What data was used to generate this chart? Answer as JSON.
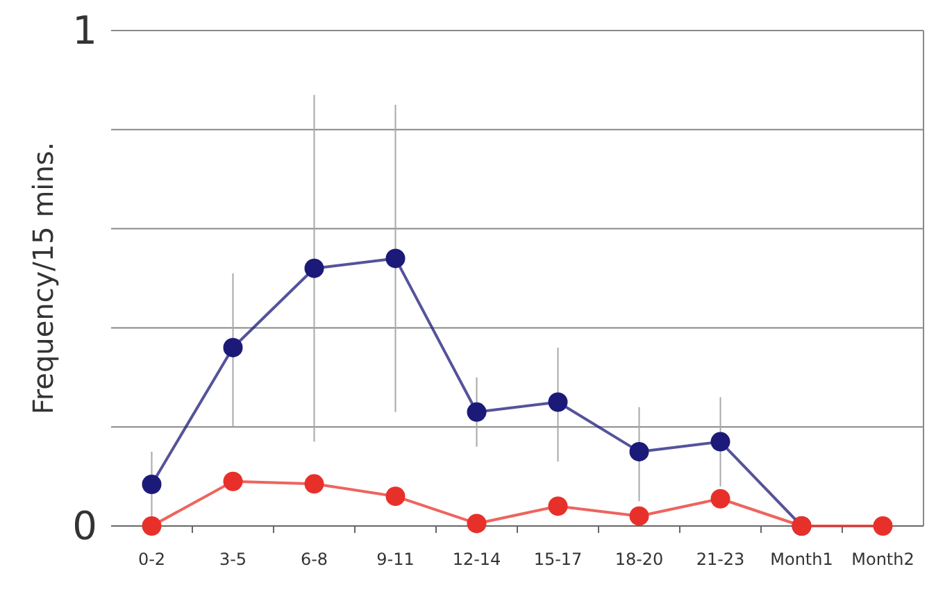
{
  "chart_data": {
    "type": "line",
    "ylabel": "Frequency/15 mins.",
    "categories": [
      "0-2",
      "3-5",
      "6-8",
      "9-11",
      "12-14",
      "15-17",
      "18-20",
      "21-23",
      "Month1",
      "Month2"
    ],
    "series": [
      {
        "color": "#1c1a78",
        "values": [
          0.084,
          0.36,
          0.52,
          0.54,
          0.23,
          0.25,
          0.15,
          0.17,
          0,
          null
        ],
        "errors": [
          [
            0.01,
            0.15
          ],
          [
            0.2,
            0.51
          ],
          [
            0.17,
            0.87
          ],
          [
            0.23,
            0.85
          ],
          [
            0.16,
            0.3
          ],
          [
            0.13,
            0.36
          ],
          [
            0.05,
            0.24
          ],
          [
            0.08,
            0.26
          ],
          null,
          null
        ]
      },
      {
        "color": "#e8302a",
        "values": [
          0,
          0.09,
          0.085,
          0.06,
          0.005,
          0.04,
          0.02,
          0.055,
          0,
          0
        ]
      }
    ],
    "ylim": [
      0,
      1
    ],
    "yticks": [
      0,
      {
        "value": 0.2,
        "label": null
      },
      {
        "value": 0.4,
        "label": null
      },
      {
        "value": 0.6,
        "label": null
      },
      {
        "value": 0.8,
        "label": null
      },
      1
    ],
    "grid": "y",
    "marker": "circle",
    "line_style": "solid"
  }
}
